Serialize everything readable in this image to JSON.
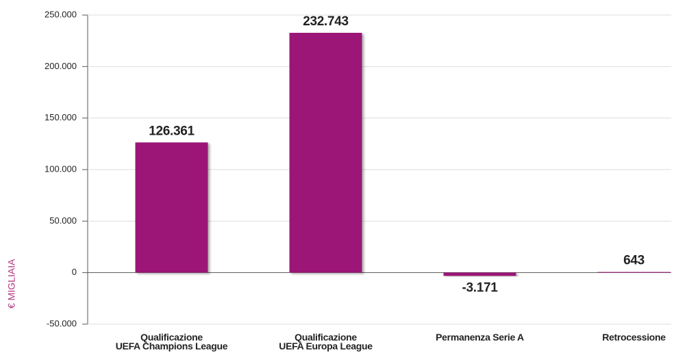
{
  "chart_data": {
    "type": "bar",
    "y_label": "€ MIGLIAIA",
    "categories": [
      "Qualificazione\nUEFA Champions League",
      "Qualificazione\nUEFA Europa League",
      "Permanenza Serie A",
      "Retrocessione"
    ],
    "values": [
      126361,
      232743,
      -3171,
      643
    ],
    "value_labels": [
      "126.361",
      "232.743",
      "-3.171",
      "643"
    ],
    "color": "#9b1877",
    "ylim": [
      -50000,
      250000
    ],
    "yticks": [
      {
        "value": -50000,
        "label": "-50.000"
      },
      0,
      {
        "value": 50000,
        "label": "50.000"
      },
      {
        "value": 100000,
        "label": "100.000"
      },
      {
        "value": 150000,
        "label": "150.000"
      },
      {
        "value": 200000,
        "label": "200.000"
      },
      {
        "value": 250000,
        "label": "250.000"
      }
    ],
    "grid": true
  }
}
